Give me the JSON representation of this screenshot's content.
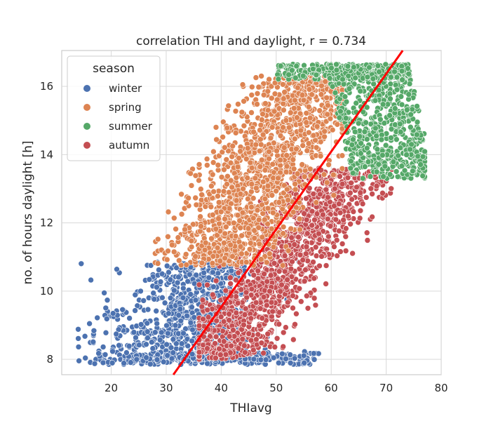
{
  "chart_data": {
    "type": "scatter",
    "title": "correlation THI and daylight, r = 0.734",
    "xlabel": "THIavg",
    "ylabel": "no. of hours daylight [h]",
    "xlim": [
      11,
      80
    ],
    "ylim": [
      7.55,
      17.05
    ],
    "x_ticks": [
      "20",
      "30",
      "40",
      "50",
      "60",
      "70",
      "80"
    ],
    "y_ticks": [
      "8",
      "10",
      "12",
      "14",
      "16"
    ],
    "grid": true,
    "legend": {
      "title": "season",
      "position": "top-left"
    },
    "series": [
      {
        "name": "winter",
        "color": "#4c72b0",
        "region": {
          "x_range": [
            14,
            59
          ],
          "y_range": [
            7.8,
            10.85
          ],
          "x_mean": 40,
          "y_mean": 9.0
        }
      },
      {
        "name": "spring",
        "color": "#dd8452",
        "region": {
          "x_range": [
            29,
            62
          ],
          "y_range": [
            10.7,
            16.4
          ],
          "x_mean": 46,
          "y_mean": 13.3
        }
      },
      {
        "name": "summer",
        "color": "#55a868",
        "region": {
          "x_range": [
            49,
            77
          ],
          "y_range": [
            13.3,
            16.7
          ],
          "x_mean": 64,
          "y_mean": 15.3
        }
      },
      {
        "name": "autumn",
        "color": "#c44e52",
        "region": {
          "x_range": [
            36,
            71
          ],
          "y_range": [
            7.9,
            13.6
          ],
          "x_mean": 53,
          "y_mean": 10.9
        }
      }
    ],
    "regression_line": {
      "color": "#ff0000",
      "points": [
        [
          31.3,
          7.55
        ],
        [
          73.0,
          17.05
        ]
      ]
    }
  }
}
